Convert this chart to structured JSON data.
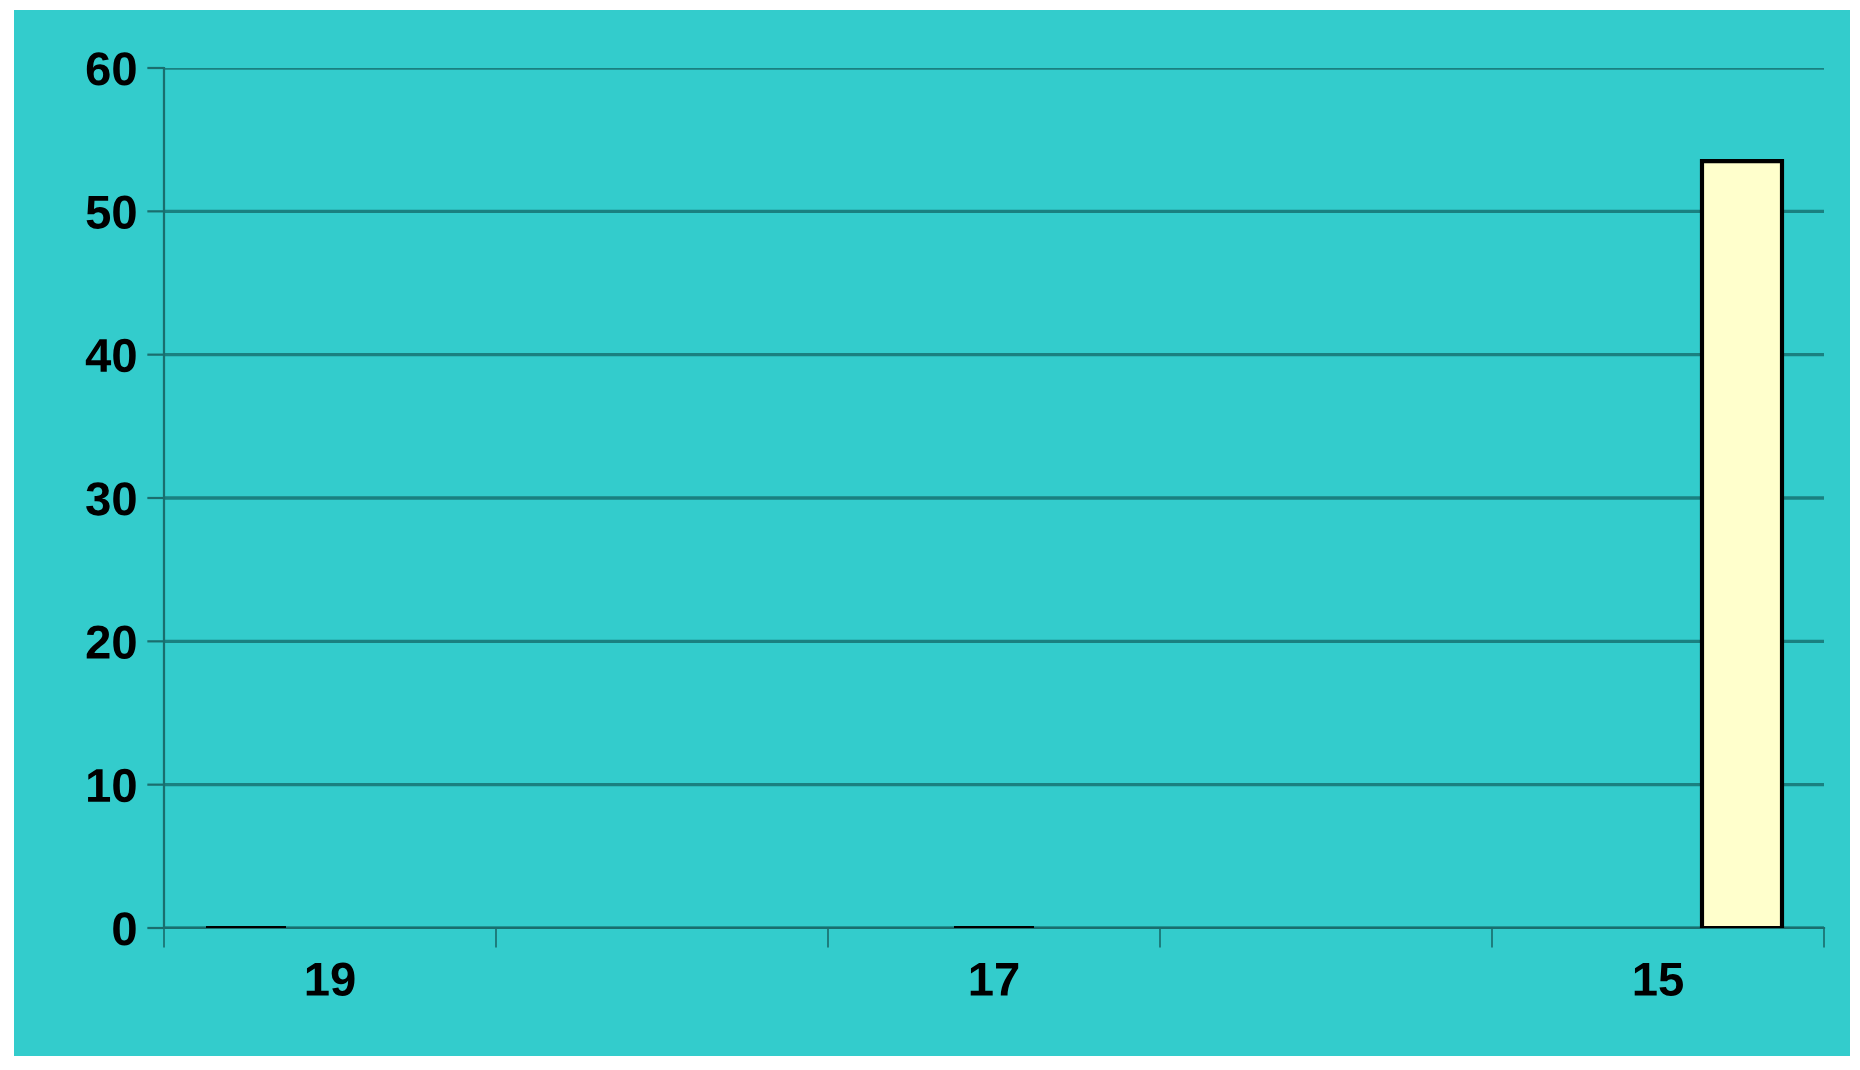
{
  "chart_data": {
    "type": "bar",
    "categories": [
      "19",
      null,
      "17",
      null,
      "15"
    ],
    "series": [
      {
        "color": "#000000",
        "values": [
          0,
          null,
          null,
          null,
          null
        ]
      },
      {
        "color": "#000000",
        "values": [
          null,
          null,
          0,
          null,
          null
        ]
      },
      {
        "color": "#ffffcc",
        "values": [
          null,
          null,
          null,
          null,
          53.5
        ]
      }
    ],
    "ylim": [
      0,
      60
    ],
    "yticks": [
      0,
      10,
      20,
      30,
      40,
      50,
      60
    ],
    "grid": "y",
    "legend": false
  }
}
